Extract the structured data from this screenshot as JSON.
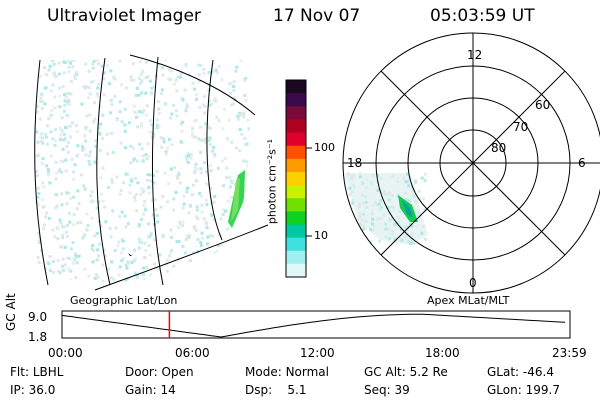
{
  "header": {
    "instrument": "Ultraviolet Imager",
    "date": "17 Nov 07",
    "time": "05:03:59 UT"
  },
  "colorbar": {
    "unit_label": "photon cm⁻²s⁻¹",
    "ticks": [
      "100",
      "10"
    ],
    "colors": [
      "#1a0820",
      "#3a0a4a",
      "#7a0a3a",
      "#b00020",
      "#e0002a",
      "#ff5000",
      "#ff9a00",
      "#ffd000",
      "#c8f000",
      "#70e000",
      "#10d020",
      "#00c8a0",
      "#40e0e0",
      "#a0f0f0",
      "#e0f8f8"
    ]
  },
  "left_panel": {
    "caption": "Geographic Lat/Lon"
  },
  "right_panel": {
    "caption": "Apex MLat/MLT",
    "mlt_labels": {
      "top": "12",
      "left": "18",
      "right": "6",
      "bottom": "0"
    },
    "lat_labels": [
      "60",
      "70",
      "80"
    ]
  },
  "timeline": {
    "ylabel": "GC Alt",
    "y_ticks": [
      "9.0",
      "1.8"
    ],
    "x_ticks": [
      "00:00",
      "06:00",
      "12:00",
      "18:00",
      "23:59"
    ],
    "marker_time_hours": 5.07
  },
  "info": {
    "row1": [
      {
        "label": "Flt:",
        "value": "LBHL"
      },
      {
        "label": "Door:",
        "value": "Open"
      },
      {
        "label": "Mode:",
        "value": "Normal"
      },
      {
        "label": "GC Alt:",
        "value": "5.2 Re"
      },
      {
        "label": "GLat:",
        "value": "-46.4"
      }
    ],
    "row2": [
      {
        "label": "IP:",
        "value": "36.0"
      },
      {
        "label": "Gain:",
        "value": "14"
      },
      {
        "label": "Dsp:",
        "value": "5.1"
      },
      {
        "label": "Seq:",
        "value": "39"
      },
      {
        "label": "GLon:",
        "value": "199.7"
      }
    ]
  }
}
